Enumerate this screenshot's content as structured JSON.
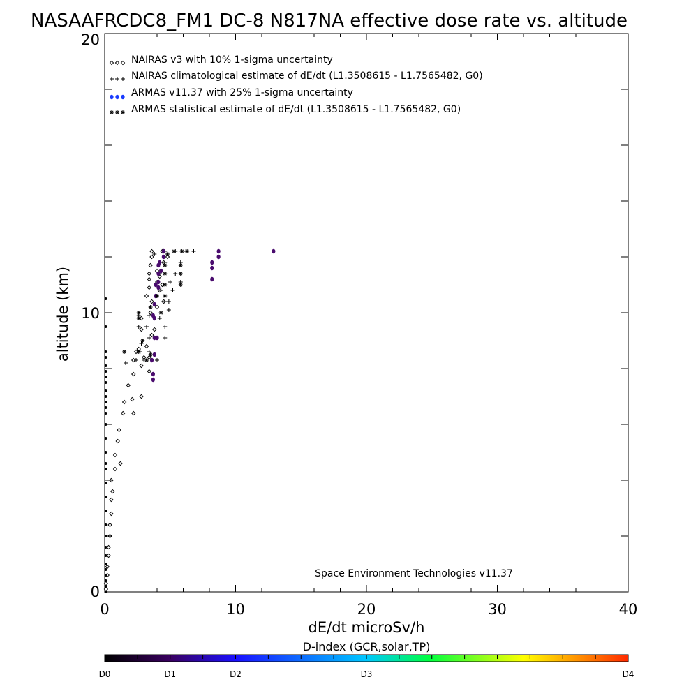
{
  "chart_data": {
    "type": "scatter",
    "title": "NASAAFRCDC8_FM1 DC-8   N817NA effective dose rate vs. altitude",
    "xlabel": "dE/dt microSv/h",
    "ylabel": "altitude (km)",
    "xlim": [
      0,
      40
    ],
    "ylim": [
      0,
      20
    ],
    "x_ticks": [
      "0",
      "10",
      "20",
      "30",
      "40"
    ],
    "y_ticks": [
      "0",
      "10",
      "20"
    ],
    "legend_position": "top-left",
    "annotation": "Space Environment Technologies v11.37",
    "colorbar": {
      "title": "D-index (GCR,solar,TP)",
      "labels": [
        "D0",
        "D1",
        "D2",
        "D3",
        "D4"
      ],
      "label_positions": [
        0,
        0.125,
        0.25,
        0.5,
        1.0
      ],
      "colors": [
        "#000000",
        "#3a0060",
        "#1a10ff",
        "#00c8ff",
        "#00ff40",
        "#ffff00",
        "#ff2a00"
      ]
    },
    "series": [
      {
        "name": "NAIRAS v3 with 10% 1-sigma uncertainty",
        "marker": "diamond",
        "color": "#000000",
        "points": [
          [
            0.1,
            0.1
          ],
          [
            0.1,
            0.3
          ],
          [
            0.2,
            0.6
          ],
          [
            0.2,
            0.9
          ],
          [
            0.3,
            1.3
          ],
          [
            0.3,
            1.6
          ],
          [
            0.4,
            2.0
          ],
          [
            0.4,
            2.4
          ],
          [
            0.5,
            2.8
          ],
          [
            0.5,
            3.3
          ],
          [
            0.6,
            3.6
          ],
          [
            0.5,
            4.0
          ],
          [
            0.8,
            4.4
          ],
          [
            1.2,
            4.6
          ],
          [
            0.8,
            4.9
          ],
          [
            1.0,
            5.4
          ],
          [
            1.1,
            5.8
          ],
          [
            1.4,
            6.4
          ],
          [
            2.2,
            6.4
          ],
          [
            1.5,
            6.8
          ],
          [
            2.1,
            6.9
          ],
          [
            2.8,
            7.0
          ],
          [
            1.8,
            7.4
          ],
          [
            2.2,
            7.8
          ],
          [
            2.8,
            8.1
          ],
          [
            3.4,
            7.9
          ],
          [
            2.2,
            8.3
          ],
          [
            3.0,
            8.4
          ],
          [
            2.4,
            8.6
          ],
          [
            3.4,
            8.4
          ],
          [
            2.6,
            8.7
          ],
          [
            3.2,
            8.8
          ],
          [
            2.8,
            9.4
          ],
          [
            3.6,
            9.2
          ],
          [
            3.8,
            9.4
          ],
          [
            2.8,
            9.8
          ],
          [
            3.5,
            10.0
          ],
          [
            4.0,
            10.2
          ],
          [
            3.6,
            10.4
          ],
          [
            4.5,
            10.4
          ],
          [
            3.2,
            10.6
          ],
          [
            4.2,
            10.8
          ],
          [
            3.4,
            10.9
          ],
          [
            4.4,
            11.0
          ],
          [
            3.4,
            11.2
          ],
          [
            4.2,
            11.3
          ],
          [
            3.4,
            11.4
          ],
          [
            4.0,
            11.5
          ],
          [
            3.5,
            11.7
          ],
          [
            4.5,
            11.8
          ],
          [
            3.6,
            12.0
          ],
          [
            4.8,
            12.0
          ],
          [
            3.6,
            12.2
          ],
          [
            4.4,
            12.2
          ]
        ]
      },
      {
        "name": "NAIRAS climatological estimate of dE/dt (L1.3508615 - L1.7565482, G0)",
        "marker": "plus",
        "color": "#000000",
        "points": [
          [
            1.6,
            8.2
          ],
          [
            2.4,
            8.3
          ],
          [
            3.0,
            8.3
          ],
          [
            4.0,
            8.3
          ],
          [
            2.7,
            8.6
          ],
          [
            3.4,
            8.6
          ],
          [
            2.8,
            8.9
          ],
          [
            3.4,
            9.1
          ],
          [
            4.6,
            9.1
          ],
          [
            2.6,
            9.5
          ],
          [
            3.2,
            9.5
          ],
          [
            4.6,
            9.5
          ],
          [
            2.6,
            9.9
          ],
          [
            3.4,
            9.9
          ],
          [
            4.2,
            9.8
          ],
          [
            4.9,
            10.1
          ],
          [
            4.6,
            10.4
          ],
          [
            4.9,
            10.4
          ],
          [
            4.3,
            10.8
          ],
          [
            5.2,
            10.8
          ],
          [
            4.0,
            11.1
          ],
          [
            5.0,
            11.1
          ],
          [
            5.8,
            11.1
          ],
          [
            4.2,
            11.4
          ],
          [
            5.4,
            11.4
          ],
          [
            4.6,
            11.8
          ],
          [
            5.8,
            11.8
          ],
          [
            3.8,
            12.1
          ],
          [
            4.6,
            12.2
          ],
          [
            5.4,
            12.2
          ],
          [
            6.2,
            12.2
          ],
          [
            6.8,
            12.2
          ]
        ]
      },
      {
        "name": "ARMAS v11.37 with 25% 1-sigma uncertainty",
        "marker": "dot",
        "color": "#4a0c6e",
        "points": [
          [
            3.7,
            7.6
          ],
          [
            3.7,
            7.8
          ],
          [
            3.6,
            8.3
          ],
          [
            3.8,
            8.5
          ],
          [
            3.8,
            9.1
          ],
          [
            4.0,
            9.1
          ],
          [
            3.8,
            9.8
          ],
          [
            3.7,
            9.9
          ],
          [
            3.8,
            10.3
          ],
          [
            3.9,
            10.6
          ],
          [
            4.1,
            10.9
          ],
          [
            3.9,
            11.0
          ],
          [
            4.1,
            11.1
          ],
          [
            4.1,
            11.4
          ],
          [
            4.3,
            11.5
          ],
          [
            4.1,
            11.7
          ],
          [
            4.2,
            11.8
          ],
          [
            4.5,
            12.0
          ],
          [
            4.5,
            12.2
          ],
          [
            8.2,
            11.2
          ],
          [
            8.2,
            11.6
          ],
          [
            8.2,
            11.8
          ],
          [
            8.7,
            12.0
          ],
          [
            8.7,
            12.2
          ],
          [
            12.9,
            12.2
          ]
        ]
      },
      {
        "name": "ARMAS statistical estimate of dE/dt (L1.3508615 - L1.7565482, G0)",
        "marker": "asterisk",
        "color": "#000000",
        "points": [
          [
            1.5,
            8.6
          ],
          [
            2.6,
            8.6
          ],
          [
            3.2,
            8.3
          ],
          [
            3.5,
            8.5
          ],
          [
            2.9,
            9.0
          ],
          [
            2.6,
            9.8
          ],
          [
            2.6,
            10.0
          ],
          [
            3.5,
            10.2
          ],
          [
            4.3,
            10.0
          ],
          [
            4.0,
            10.6
          ],
          [
            4.6,
            10.6
          ],
          [
            4.6,
            11.0
          ],
          [
            5.8,
            11.0
          ],
          [
            4.6,
            11.4
          ],
          [
            5.8,
            11.4
          ],
          [
            4.6,
            11.7
          ],
          [
            5.8,
            11.7
          ],
          [
            4.8,
            12.1
          ],
          [
            5.3,
            12.2
          ],
          [
            5.9,
            12.2
          ],
          [
            6.3,
            12.2
          ]
        ]
      }
    ],
    "left_axis_points": [
      0.0,
      0.2,
      0.4,
      0.6,
      0.8,
      1.0,
      1.3,
      1.6,
      2.0,
      2.4,
      2.9,
      3.4,
      3.9,
      4.4,
      4.6,
      5.0,
      5.5,
      6.0,
      6.4,
      6.6,
      6.8,
      7.0,
      7.2,
      7.5,
      7.7,
      7.9,
      8.1,
      8.4,
      8.6,
      9.5,
      10.5
    ]
  }
}
